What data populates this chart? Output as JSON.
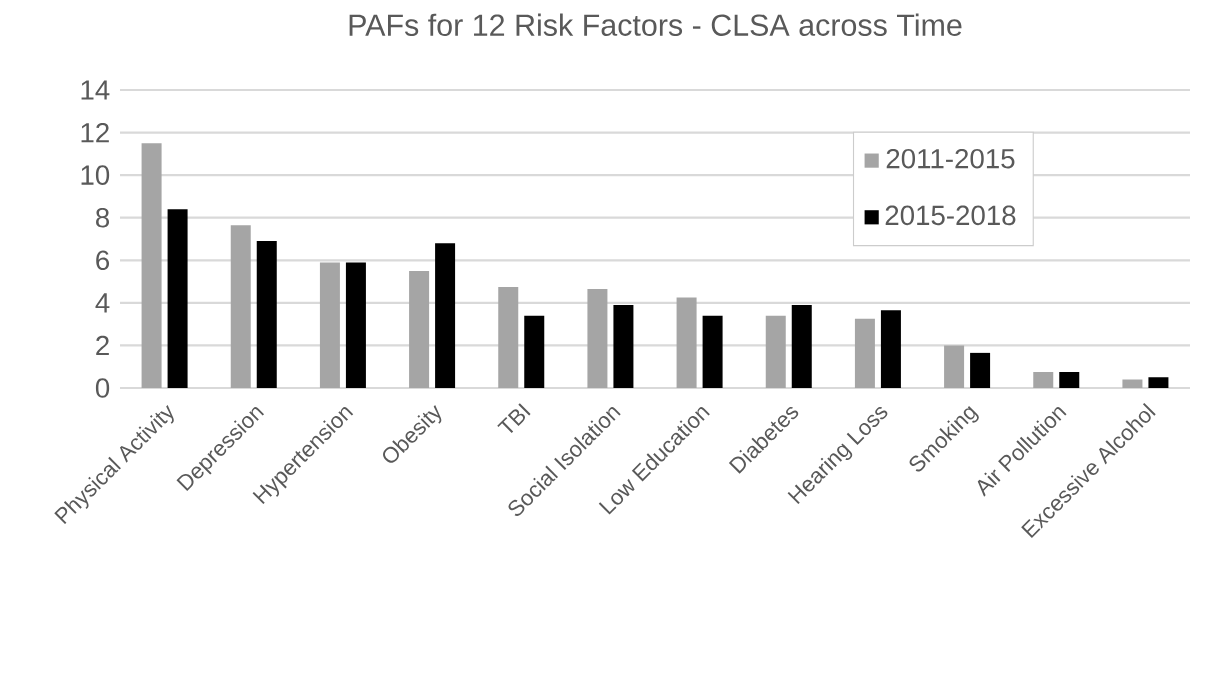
{
  "chart_data": {
    "type": "bar",
    "title": "PAFs for 12 Risk Factors - CLSA across Time",
    "categories": [
      "Physical Activity",
      "Depression",
      "Hypertension",
      "Obesity",
      "TBI",
      "Social Isolation",
      "Low Education",
      "Diabetes",
      "Hearing Loss",
      "Smoking",
      "Air Pollution",
      "Excessive Alcohol"
    ],
    "series": [
      {
        "name": "2011-2015",
        "color": "#a5a5a5",
        "values": [
          11.5,
          7.65,
          5.9,
          5.5,
          4.75,
          4.65,
          4.25,
          3.4,
          3.25,
          2.0,
          0.75,
          0.4
        ]
      },
      {
        "name": "2015-2018",
        "color": "#000000",
        "values": [
          8.4,
          6.9,
          5.9,
          6.8,
          3.4,
          3.9,
          3.4,
          3.9,
          3.65,
          1.65,
          0.75,
          0.5
        ]
      }
    ],
    "ylim": [
      0,
      14
    ],
    "yticks": [
      0,
      2,
      4,
      6,
      8,
      10,
      12,
      14
    ],
    "grid": "y",
    "legend": "top right"
  }
}
